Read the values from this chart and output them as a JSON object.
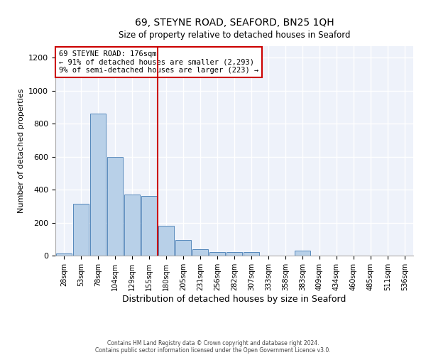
{
  "title": "69, STEYNE ROAD, SEAFORD, BN25 1QH",
  "subtitle": "Size of property relative to detached houses in Seaford",
  "xlabel": "Distribution of detached houses by size in Seaford",
  "ylabel": "Number of detached properties",
  "bar_color": "#b8d0e8",
  "bar_edge_color": "#5588bb",
  "background_color": "#eef2fa",
  "grid_color": "#ffffff",
  "annotation_box_color": "#cc0000",
  "vline_color": "#cc0000",
  "annotation_text": "69 STEYNE ROAD: 176sqm\n← 91% of detached houses are smaller (2,293)\n9% of semi-detached houses are larger (223) →",
  "categories": [
    "28sqm",
    "53sqm",
    "78sqm",
    "104sqm",
    "129sqm",
    "155sqm",
    "180sqm",
    "205sqm",
    "231sqm",
    "256sqm",
    "282sqm",
    "307sqm",
    "333sqm",
    "358sqm",
    "383sqm",
    "409sqm",
    "434sqm",
    "460sqm",
    "485sqm",
    "511sqm",
    "536sqm"
  ],
  "bar_heights": [
    15,
    315,
    860,
    600,
    370,
    360,
    180,
    95,
    40,
    20,
    20,
    20,
    0,
    0,
    28,
    0,
    0,
    0,
    0,
    0,
    0
  ],
  "vline_index": 6,
  "ylim": [
    0,
    1270
  ],
  "yticks": [
    0,
    200,
    400,
    600,
    800,
    1000,
    1200
  ],
  "footnote_line1": "Contains HM Land Registry data © Crown copyright and database right 2024.",
  "footnote_line2": "Contains public sector information licensed under the Open Government Licence v3.0.",
  "fig_bg": "#ffffff"
}
